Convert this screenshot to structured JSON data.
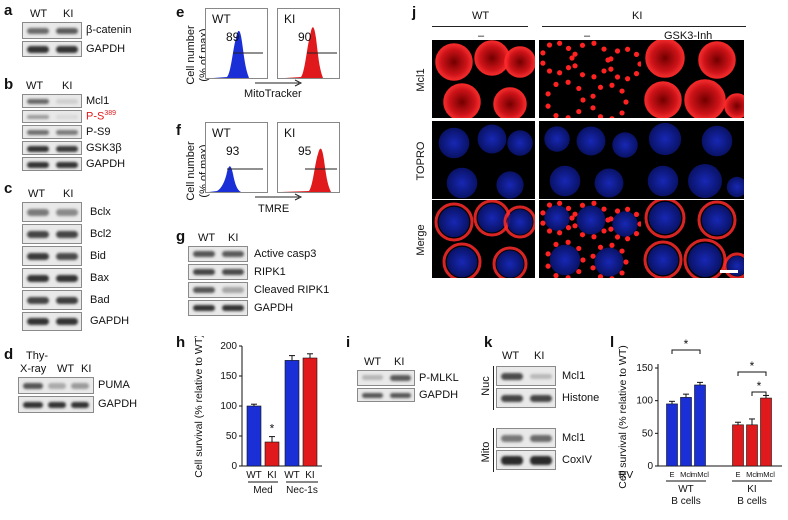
{
  "panels": {
    "a": {
      "letter": "a",
      "lanes": [
        "WT",
        "KI"
      ],
      "proteins": [
        "β-catenin",
        "GAPDH"
      ]
    },
    "b": {
      "letter": "b",
      "lanes": [
        "WT",
        "KI"
      ],
      "proteins": [
        "Mcl1",
        "P-S",
        "P-S9",
        "GSK3β",
        "GAPDH"
      ],
      "phospho_sup": "389"
    },
    "c": {
      "letter": "c",
      "lanes": [
        "WT",
        "KI"
      ],
      "proteins": [
        "Bclx",
        "Bcl2",
        "Bid",
        "Bax",
        "Bad",
        "GAPDH"
      ]
    },
    "d": {
      "letter": "d",
      "lanes": [
        "Thy-",
        "X-ray",
        "WT",
        "KI"
      ],
      "proteins": [
        "PUMA",
        "GAPDH"
      ]
    },
    "e": {
      "letter": "e",
      "ylabel_1": "Cell number",
      "ylabel_2": "(% of max)",
      "xlabel": "MitoTracker",
      "histos": [
        {
          "label": "WT",
          "value": "89",
          "color": "#1a2fd6"
        },
        {
          "label": "KI",
          "value": "90",
          "color": "#e0191c"
        }
      ]
    },
    "f": {
      "letter": "f",
      "ylabel_1": "Cell number",
      "ylabel_2": "(% of max)",
      "xlabel": "TMRE",
      "histos": [
        {
          "label": "WT",
          "value": "93",
          "color": "#1a2fd6"
        },
        {
          "label": "KI",
          "value": "95",
          "color": "#e0191c"
        }
      ]
    },
    "g": {
      "letter": "g",
      "lanes": [
        "WT",
        "KI"
      ],
      "proteins": [
        "Active casp3",
        "RIPK1",
        "Cleaved RIPK1",
        "GAPDH"
      ]
    },
    "h": {
      "letter": "h"
    },
    "i": {
      "letter": "i",
      "lanes": [
        "WT",
        "KI"
      ],
      "proteins": [
        "P-MLKL",
        "GAPDH"
      ]
    },
    "j": {
      "letter": "j",
      "groups": [
        "WT",
        "KI"
      ],
      "conditions": [
        "–",
        "–",
        "GSK3-Inh"
      ],
      "rows": [
        "Mcl1",
        "TOPRO",
        "Merge"
      ]
    },
    "k": {
      "letter": "k",
      "lanes": [
        "WT",
        "KI"
      ],
      "fractions": [
        "Nuc",
        "Mito"
      ],
      "proteins": [
        "Mcl1",
        "Histone",
        "Mcl1",
        "CoxIV"
      ]
    },
    "l": {
      "letter": "l"
    }
  },
  "chart_data": [
    {
      "panel": "h",
      "type": "bar",
      "ylabel": "Cell survival (% relative to WT)",
      "ylim": [
        0,
        200
      ],
      "yticks": [
        "0",
        "50",
        "100",
        "150",
        "200"
      ],
      "categories": [
        "WT",
        "KI",
        "WT",
        "KI"
      ],
      "groups": [
        "Med",
        "Nec-1s"
      ],
      "values": [
        100,
        40,
        176,
        180
      ],
      "errors": [
        3,
        9,
        8,
        7
      ],
      "colors": [
        "#1a2fd6",
        "#e0191c",
        "#1a2fd6",
        "#e0191c"
      ],
      "annotations": [
        "*"
      ]
    },
    {
      "panel": "l",
      "type": "bar",
      "ylabel": "Cell survival (% relative to WT)",
      "ylim": [
        0,
        150
      ],
      "yticks": [
        "0",
        "50",
        "100",
        "150"
      ],
      "rv_label": "RV",
      "categories": [
        "E",
        "Mcl",
        "mMcl",
        "E",
        "Mcl",
        "mMcl"
      ],
      "groups": [
        "WT B cells",
        "KI B cells"
      ],
      "group_lines": [
        [
          "WT",
          "B cells"
        ],
        [
          "KI",
          "B cells"
        ]
      ],
      "values": [
        95,
        105,
        124,
        63,
        63,
        104
      ],
      "errors": [
        4,
        5,
        4,
        4,
        9,
        4
      ],
      "colors": [
        "#1a2fd6",
        "#1a2fd6",
        "#1a2fd6",
        "#e0191c",
        "#e0191c",
        "#e0191c"
      ],
      "annotations": [
        "*",
        "*",
        "*"
      ]
    }
  ]
}
